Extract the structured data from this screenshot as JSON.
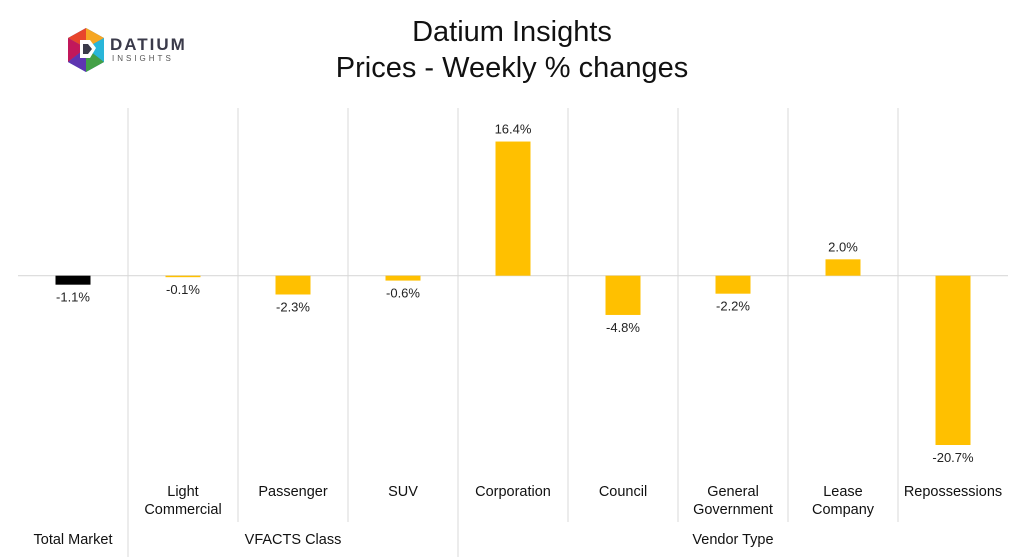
{
  "header": {
    "title_line1": "Datium Insights",
    "title_line2": "Prices - Weekly % changes"
  },
  "logo": {
    "word": "DATIUM",
    "sub": "INSIGHTS"
  },
  "colors": {
    "total_bar": "#000000",
    "bar": "#FFC000",
    "grid": "#d9d9d9",
    "zero_line": "#d9d9d9"
  },
  "chart_data": {
    "type": "bar",
    "title": "Datium Insights",
    "subtitle": "Prices - Weekly % changes",
    "categories": [
      "Total Market",
      "Light Commercial",
      "Passenger",
      "SUV",
      "Corporation",
      "Council",
      "General Government",
      "Lease Company",
      "Repossessions"
    ],
    "category_lines": [
      [
        "Total Market"
      ],
      [
        "Light",
        "Commercial"
      ],
      [
        "Passenger"
      ],
      [
        "SUV"
      ],
      [
        "Corporation"
      ],
      [
        "Council"
      ],
      [
        "General",
        "Government"
      ],
      [
        "Lease",
        "Company"
      ],
      [
        "Repossessions"
      ]
    ],
    "values": [
      -1.1,
      -0.1,
      -2.3,
      -0.6,
      16.4,
      -4.8,
      -2.2,
      2.0,
      -20.7
    ],
    "labels": [
      "-1.1%",
      "-0.1%",
      "-2.3%",
      "-0.6%",
      "16.4%",
      "-4.8%",
      "-2.2%",
      "2.0%",
      "-20.7%"
    ],
    "groups": [
      {
        "name": "",
        "categories": [
          "Total Market"
        ]
      },
      {
        "name": "VFACTS Class",
        "categories": [
          "Light Commercial",
          "Passenger",
          "SUV"
        ]
      },
      {
        "name": "Vendor Type",
        "categories": [
          "Corporation",
          "Council",
          "General Government",
          "Lease Company",
          "Repossessions"
        ]
      }
    ],
    "ylim": [
      -24.0,
      20.5
    ],
    "grid": false,
    "xlabel": "",
    "ylabel": ""
  }
}
